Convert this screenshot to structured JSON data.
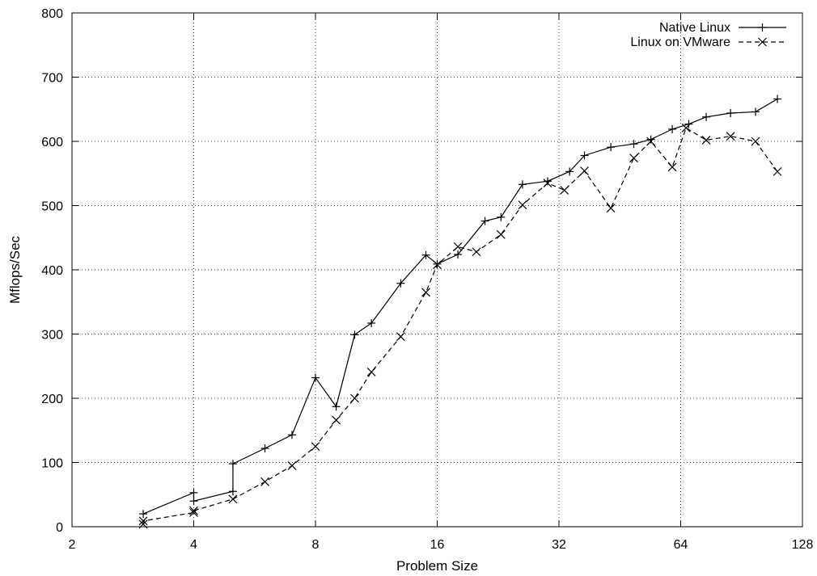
{
  "chart_data": {
    "type": "line",
    "xlabel": "Problem Size",
    "ylabel": "Mflops/Sec",
    "x_scale": "log2",
    "xlim": [
      2,
      128
    ],
    "ylim": [
      0,
      800
    ],
    "x_ticks": [
      2,
      4,
      8,
      16,
      32,
      64,
      128
    ],
    "x_tick_labels": [
      "2",
      "4",
      "8",
      "16",
      "32",
      "64",
      "128"
    ],
    "y_ticks": [
      0,
      100,
      200,
      300,
      400,
      500,
      600,
      700,
      800
    ],
    "y_tick_labels": [
      "0",
      "100",
      "200",
      "300",
      "400",
      "500",
      "600",
      "700",
      "800"
    ],
    "grid": true,
    "legend_position": "top-right",
    "series": [
      {
        "name": "Native Linux",
        "marker": "plus",
        "line_style": "solid",
        "color": "#000000",
        "points": [
          [
            3,
            20
          ],
          [
            4,
            53
          ],
          [
            4,
            40
          ],
          [
            5,
            55
          ],
          [
            5,
            98
          ],
          [
            6,
            122
          ],
          [
            7,
            143
          ],
          [
            8,
            232
          ],
          [
            9,
            187
          ],
          [
            10,
            299
          ],
          [
            11,
            317
          ],
          [
            13,
            379
          ],
          [
            15,
            423
          ],
          [
            16,
            409
          ],
          [
            18,
            424
          ],
          [
            21,
            476
          ],
          [
            23,
            482
          ],
          [
            26,
            533
          ],
          [
            30,
            538
          ],
          [
            34,
            553
          ],
          [
            37,
            578
          ],
          [
            43,
            591
          ],
          [
            49,
            596
          ],
          [
            54,
            603
          ],
          [
            61,
            619
          ],
          [
            67,
            627
          ],
          [
            74,
            638
          ],
          [
            85,
            644
          ],
          [
            98,
            646
          ],
          [
            111,
            666
          ]
        ]
      },
      {
        "name": "Linux on VMware",
        "marker": "cross",
        "line_style": "dashed",
        "color": "#000000",
        "points": [
          [
            3,
            4
          ],
          [
            3,
            9
          ],
          [
            4,
            22
          ],
          [
            4,
            25
          ],
          [
            5,
            43
          ],
          [
            6,
            70
          ],
          [
            7,
            95
          ],
          [
            8,
            125
          ],
          [
            9,
            166
          ],
          [
            10,
            200
          ],
          [
            11,
            241
          ],
          [
            13,
            296
          ],
          [
            15,
            365
          ],
          [
            16,
            408
          ],
          [
            18,
            436
          ],
          [
            20,
            428
          ],
          [
            23,
            455
          ],
          [
            26,
            501
          ],
          [
            30,
            535
          ],
          [
            33,
            524
          ],
          [
            37,
            554
          ],
          [
            43,
            496
          ],
          [
            49,
            574
          ],
          [
            54,
            600
          ],
          [
            61,
            560
          ],
          [
            66,
            621
          ],
          [
            74,
            602
          ],
          [
            85,
            608
          ],
          [
            98,
            600
          ],
          [
            111,
            553
          ]
        ]
      }
    ]
  }
}
